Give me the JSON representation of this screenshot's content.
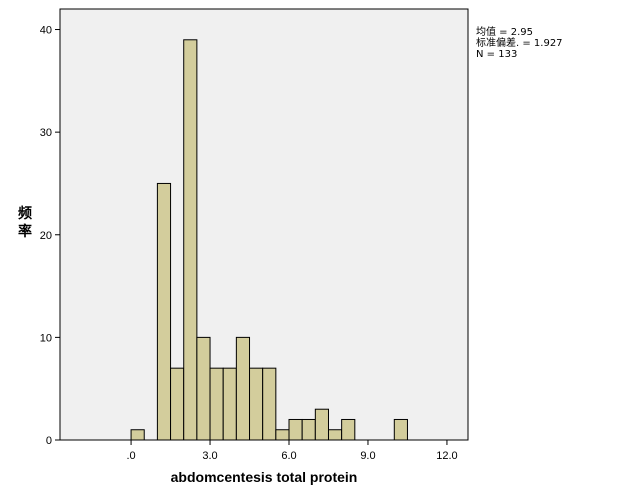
{
  "chart_data": {
    "type": "bar",
    "subtype": "histogram",
    "xlabel": "abdomcentesis total protein",
    "ylabel": "频率",
    "xlim": [
      -2.7,
      12.8
    ],
    "ylim": [
      0,
      42
    ],
    "x_ticks": [
      {
        "value": 0,
        "label": ".0"
      },
      {
        "value": 3,
        "label": "3.0"
      },
      {
        "value": 6,
        "label": "6.0"
      },
      {
        "value": 9,
        "label": "9.0"
      },
      {
        "value": 12,
        "label": "12.0"
      }
    ],
    "y_ticks": [
      0,
      10,
      20,
      30,
      40
    ],
    "bin_width": 0.5,
    "bins": [
      {
        "start": 0.0,
        "count": 1
      },
      {
        "start": 1.0,
        "count": 25
      },
      {
        "start": 1.5,
        "count": 7
      },
      {
        "start": 2.0,
        "count": 39
      },
      {
        "start": 2.5,
        "count": 10
      },
      {
        "start": 3.0,
        "count": 7
      },
      {
        "start": 3.5,
        "count": 7
      },
      {
        "start": 4.0,
        "count": 10
      },
      {
        "start": 4.5,
        "count": 7
      },
      {
        "start": 5.0,
        "count": 7
      },
      {
        "start": 5.5,
        "count": 1
      },
      {
        "start": 6.0,
        "count": 2
      },
      {
        "start": 6.5,
        "count": 2
      },
      {
        "start": 7.0,
        "count": 3
      },
      {
        "start": 7.5,
        "count": 1
      },
      {
        "start": 8.0,
        "count": 2
      },
      {
        "start": 10.0,
        "count": 2
      }
    ],
    "grid": false,
    "colors": {
      "bar_fill": "#d3cd9c",
      "bar_stroke": "#000000",
      "plot_background": "#f0f0f0"
    }
  },
  "stats": {
    "mean": "均值 = 2.95",
    "std": "标准偏差. = 1.927",
    "n": "N = 133"
  }
}
